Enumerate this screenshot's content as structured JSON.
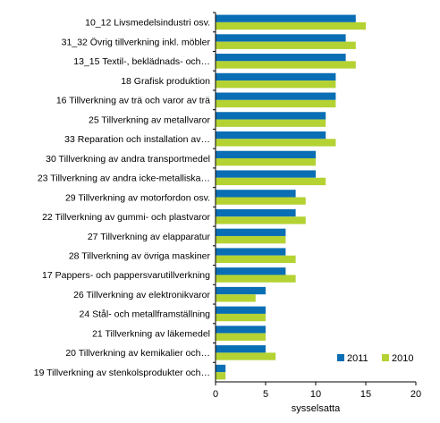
{
  "chart_data": {
    "type": "bar",
    "orientation": "horizontal",
    "categories": [
      "10_12 Livsmedelsindustri osv.",
      "31_32 Övrig tillverkning inkl. möbler",
      "13_15 Textil-, beklädnads- och…",
      "18 Grafisk produktion",
      "16 Tillverkning av trä och varor av trä",
      "25 Tillverkning av metallvaror",
      "33 Reparation och installation av…",
      "30 Tillverkning av andra transportmedel",
      "23 Tillverkning av andra icke-metalliska…",
      "29 Tillverkning av motorfordon osv.",
      "22 Tillverkning av gummi- och plastvaror",
      "27 Tillverkning av elapparatur",
      "28 Tillverkning av övriga maskiner",
      "17 Pappers- och pappersvarutillverkning",
      "26 Tillverkning av elektronikvaror",
      "24 Stål- och metallframställning",
      "21 Tillverkning av läkemedel",
      "20 Tillverkning av kemikalier och…",
      "19 Tillverkning av stenkolsprodukter och…"
    ],
    "series": [
      {
        "name": "2011",
        "color": "#0a6eb4",
        "values": [
          14,
          13,
          13,
          12,
          12,
          11,
          11,
          10,
          10,
          8,
          8,
          7,
          7,
          7,
          5,
          5,
          5,
          5,
          1
        ]
      },
      {
        "name": "2010",
        "color": "#b4d232",
        "values": [
          15,
          14,
          14,
          12,
          12,
          11,
          12,
          10,
          11,
          9,
          9,
          7,
          8,
          8,
          4,
          5,
          5,
          6,
          1
        ]
      }
    ],
    "xlabel": "sysselsatta",
    "xlim": [
      0,
      20
    ],
    "xticks": [
      "0",
      "5",
      "10",
      "15",
      "20"
    ],
    "grid": false,
    "legend": "bottom-right"
  }
}
